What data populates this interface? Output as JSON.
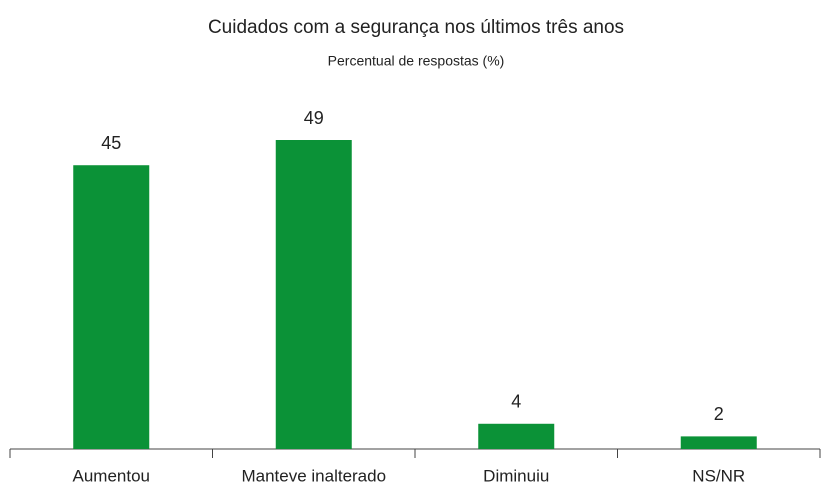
{
  "chart_data": {
    "type": "bar",
    "title": "Cuidados com a segurança nos últimos três anos",
    "subtitle": "Percentual de respostas (%)",
    "categories": [
      "Aumentou",
      "Manteve inalterado",
      "Diminuiu",
      "NS/NR"
    ],
    "values": [
      45,
      49,
      4,
      2
    ],
    "color": "#0b9237"
  }
}
